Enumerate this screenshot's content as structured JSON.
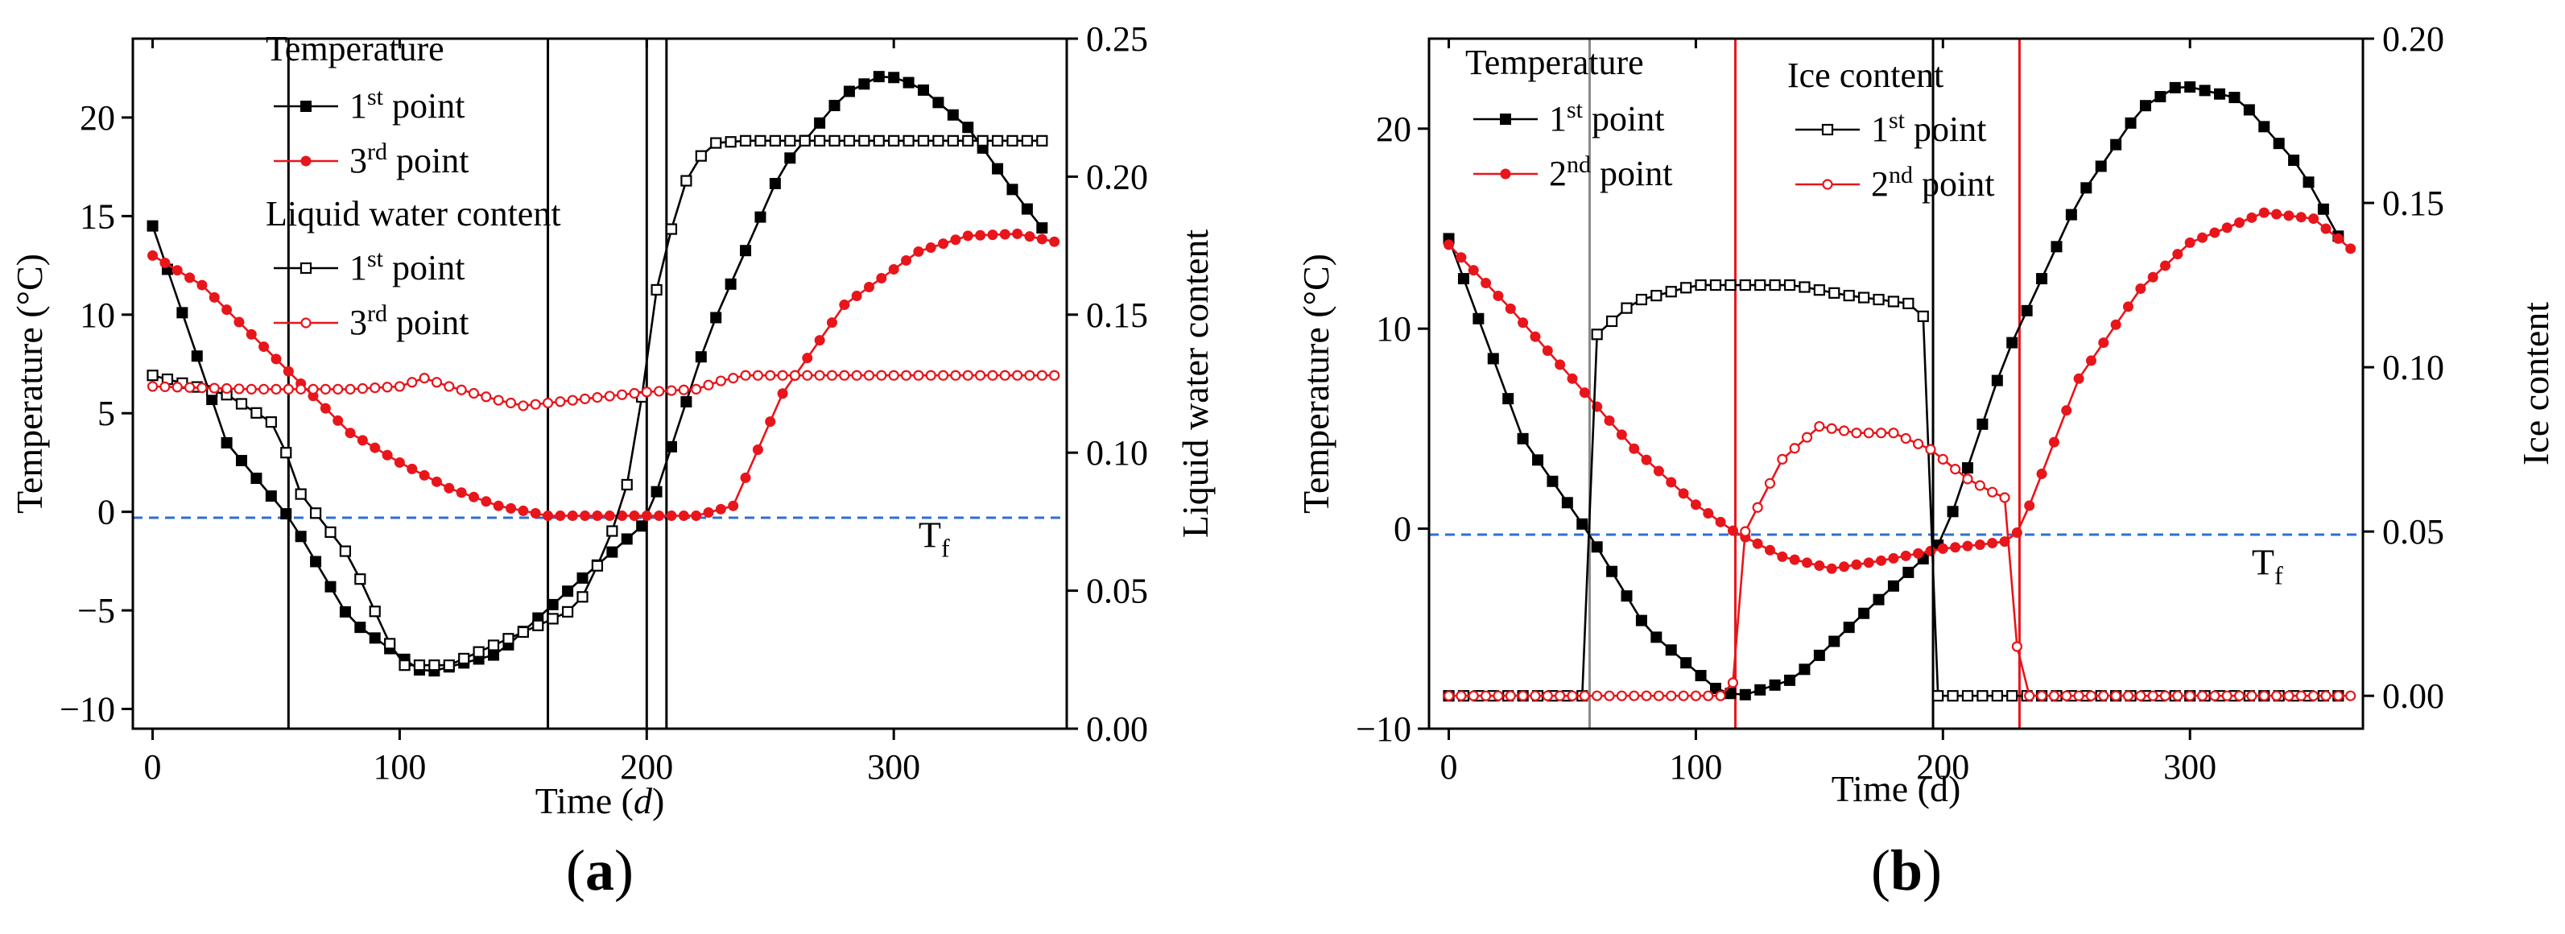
{
  "chart_data": [
    {
      "panel": "(a)",
      "panel_letter": "a",
      "type": "line",
      "xlabel_prefix": "Time (",
      "xlabel_var": "d",
      "xlabel_suffix": ")",
      "ylabel": "Temperature (°C)",
      "y2label": "Liquid water content",
      "xlim": [
        -8,
        370
      ],
      "ylim": [
        -11,
        24
      ],
      "y2lim": [
        0,
        0.25
      ],
      "xticks": [
        0,
        100,
        200,
        300
      ],
      "yticks": [
        -10,
        -5,
        0,
        5,
        10,
        15,
        20
      ],
      "y2ticks": [
        0.0,
        0.05,
        0.1,
        0.15,
        0.2,
        0.25
      ],
      "y2tick_labels": [
        "0.00",
        "0.05",
        "0.10",
        "0.15",
        "0.20",
        "0.25"
      ],
      "annotation": {
        "base": "T",
        "sub": "f",
        "x": 310,
        "y": -1.8
      },
      "reference_lines": [
        {
          "kind": "horizontal",
          "y": -0.3,
          "color": "#2f6fd0",
          "dashed": true
        },
        {
          "kind": "vertical",
          "x": 55,
          "color": "#000000"
        },
        {
          "kind": "vertical",
          "x": 160,
          "color": "#000000"
        },
        {
          "kind": "vertical",
          "x": 200,
          "color": "#000000"
        },
        {
          "kind": "vertical",
          "x": 208,
          "color": "#000000"
        }
      ],
      "legend_groups": [
        {
          "title": "Temperature",
          "entries": [
            {
              "pre": "1",
              "sup": "st",
              "post": " point",
              "series": 0
            },
            {
              "pre": "3",
              "sup": "rd",
              "post": " point",
              "series": 1
            }
          ]
        },
        {
          "title": "Liquid water content",
          "entries": [
            {
              "pre": "1",
              "sup": "st",
              "post": " point",
              "series": 2
            },
            {
              "pre": "3",
              "sup": "rd",
              "post": " point",
              "series": 3
            }
          ]
        }
      ],
      "series": [
        {
          "name": "Temperature 1st point",
          "axis": "left",
          "color": "#000000",
          "marker": "square-filled",
          "step": 6,
          "x": [
            0,
            30,
            56,
            80,
            110,
            140,
            170,
            200,
            225,
            255,
            280,
            296,
            310,
            330,
            350,
            365
          ],
          "y": [
            14.5,
            3.5,
            -0.4,
            -5.5,
            -8.2,
            -7.2,
            -3.8,
            -0.5,
            9,
            17.5,
            21.2,
            22.2,
            21.6,
            19.5,
            16,
            13.6
          ]
        },
        {
          "name": "Temperature 3rd point",
          "axis": "left",
          "color": "#e8151b",
          "marker": "circle-filled",
          "step": 5,
          "x": [
            0,
            20,
            40,
            60,
            80,
            100,
            120,
            140,
            160,
            180,
            200,
            220,
            235,
            255,
            280,
            310,
            330,
            350,
            365
          ],
          "y": [
            13,
            11.5,
            9,
            6.5,
            4,
            2.5,
            1.2,
            0.3,
            -0.2,
            -0.2,
            -0.2,
            -0.2,
            0.3,
            6,
            10.5,
            13.2,
            14,
            14.1,
            13.7
          ]
        },
        {
          "name": "Liquid water content 1st point",
          "axis": "right",
          "color": "#000000",
          "marker": "square-open",
          "step": 6,
          "x": [
            0,
            30,
            50,
            60,
            80,
            100,
            120,
            140,
            160,
            172,
            180,
            185,
            190,
            195,
            200,
            205,
            215,
            225,
            240,
            365
          ],
          "y": [
            0.128,
            0.121,
            0.11,
            0.085,
            0.062,
            0.023,
            0.023,
            0.031,
            0.039,
            0.044,
            0.059,
            0.069,
            0.082,
            0.098,
            0.135,
            0.165,
            0.197,
            0.212,
            0.213,
            0.213
          ]
        },
        {
          "name": "Liquid water content 3rd point",
          "axis": "right",
          "color": "#e8151b",
          "marker": "circle-open",
          "step": 5,
          "x": [
            0,
            40,
            80,
            100,
            110,
            120,
            140,
            150,
            160,
            180,
            200,
            220,
            230,
            240,
            300,
            365
          ],
          "y": [
            0.124,
            0.123,
            0.123,
            0.124,
            0.127,
            0.124,
            0.119,
            0.117,
            0.118,
            0.12,
            0.122,
            0.123,
            0.126,
            0.128,
            0.128,
            0.128
          ]
        }
      ]
    },
    {
      "panel": "(b)",
      "panel_letter": "b",
      "type": "line",
      "xlabel_prefix": "Time (d)",
      "xlabel_var": "",
      "xlabel_suffix": "",
      "ylabel": "Temperature (°C)",
      "y2label": "Ice content",
      "xlim": [
        -8,
        370
      ],
      "ylim": [
        -10,
        24.5
      ],
      "y2lim": [
        -0.01,
        0.2
      ],
      "xticks": [
        0,
        100,
        200,
        300
      ],
      "yticks": [
        -10,
        0,
        10,
        20
      ],
      "y2ticks": [
        0.0,
        0.05,
        0.1,
        0.15,
        0.2
      ],
      "y2tick_labels": [
        "0.00",
        "0.05",
        "0.10",
        "0.15",
        "0.20"
      ],
      "annotation": {
        "base": "T",
        "sub": "f",
        "x": 325,
        "y": -2.3
      },
      "reference_lines": [
        {
          "kind": "horizontal",
          "y": -0.3,
          "color": "#2f6fd0",
          "dashed": true
        },
        {
          "kind": "vertical",
          "x": 57,
          "color": "#8a8a8a"
        },
        {
          "kind": "vertical",
          "x": 116,
          "color": "#e8151b"
        },
        {
          "kind": "vertical",
          "x": 196,
          "color": "#000000"
        },
        {
          "kind": "vertical",
          "x": 231,
          "color": "#e8151b"
        }
      ],
      "legend_groups": [
        {
          "title": "Temperature",
          "entries": [
            {
              "pre": "1",
              "sup": "st",
              "post": " point",
              "series": 0
            },
            {
              "pre": "2",
              "sup": "nd",
              "post": " point",
              "series": 1
            }
          ]
        },
        {
          "title": "Ice content",
          "entries": [
            {
              "pre": "1",
              "sup": "st",
              "post": " point",
              "series": 2
            },
            {
              "pre": "2",
              "sup": "nd",
              "post": " point",
              "series": 3
            }
          ]
        }
      ],
      "series": [
        {
          "name": "Temperature 1st point",
          "axis": "left",
          "color": "#000000",
          "marker": "square-filled",
          "step": 6,
          "x": [
            0,
            30,
            57,
            80,
            110,
            120,
            140,
            170,
            200,
            225,
            255,
            280,
            296,
            320,
            345,
            365
          ],
          "y": [
            14.5,
            4.5,
            -0.3,
            -5,
            -8.2,
            -8.3,
            -7.5,
            -4,
            -0.6,
            8.5,
            16.5,
            21,
            22.2,
            21.5,
            18,
            13.5
          ]
        },
        {
          "name": "Temperature 2nd point",
          "axis": "left",
          "color": "#e8151b",
          "marker": "circle-filled",
          "step": 5,
          "x": [
            0,
            25,
            50,
            75,
            100,
            115,
            135,
            155,
            175,
            200,
            215,
            228,
            232,
            255,
            280,
            300,
            330,
            350,
            365
          ],
          "y": [
            14.2,
            11,
            7.5,
            4,
            1.2,
            -0.1,
            -1.4,
            -2,
            -1.6,
            -1,
            -0.8,
            -0.6,
            0.2,
            7.5,
            12,
            14.3,
            15.8,
            15.5,
            14
          ]
        },
        {
          "name": "Ice content 1st point",
          "axis": "right",
          "color": "#000000",
          "marker": "square-open",
          "step": 6,
          "x": [
            0,
            54,
            57,
            60,
            75,
            100,
            120,
            140,
            160,
            180,
            190,
            194,
            196,
            198,
            365
          ],
          "y": [
            0,
            0,
            0.02,
            0.11,
            0.12,
            0.125,
            0.125,
            0.125,
            0.122,
            0.12,
            0.119,
            0.112,
            0.098,
            0,
            0
          ]
        },
        {
          "name": "Ice content 2nd point",
          "axis": "right",
          "color": "#e8151b",
          "marker": "circle-open",
          "step": 5,
          "x": [
            0,
            114,
            116,
            120,
            135,
            150,
            165,
            180,
            195,
            210,
            220,
            226,
            229,
            231,
            365
          ],
          "y": [
            0,
            0,
            0.008,
            0.05,
            0.072,
            0.082,
            0.08,
            0.08,
            0.075,
            0.066,
            0.062,
            0.06,
            0.03,
            0,
            0
          ]
        }
      ]
    }
  ]
}
